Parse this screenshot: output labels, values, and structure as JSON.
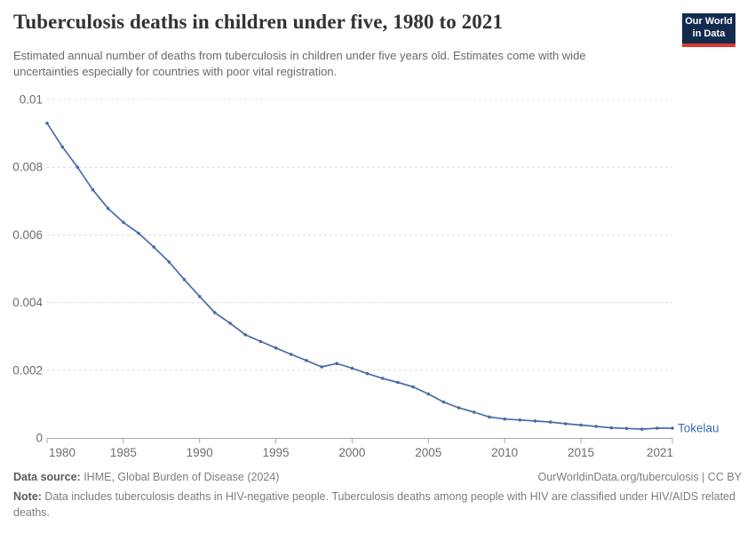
{
  "header": {
    "title": "Tuberculosis deaths in children under five, 1980 to 2021",
    "subtitle": "Estimated annual number of deaths from tuberculosis in children under five years old. Estimates come with wide uncertainties especially for countries with poor vital registration.",
    "logo": {
      "line1": "Our World",
      "line2": "in Data",
      "bg_color": "#132b4d",
      "stripe_color": "#d93b33"
    }
  },
  "chart_data": {
    "type": "line",
    "title": "Tuberculosis deaths in children under five, 1980 to 2021",
    "xlabel": "",
    "ylabel": "",
    "ylim": [
      0,
      0.01
    ],
    "yticks": [
      0,
      0.002,
      0.004,
      0.006,
      0.008,
      0.01
    ],
    "xticks": [
      1980,
      1985,
      1990,
      1995,
      2000,
      2005,
      2010,
      2015,
      2021
    ],
    "grid": true,
    "legend_position": "end-of-line",
    "colors": {
      "line": "#4a6ba8",
      "entity_label": "#3d6bb2",
      "gridline": "#dddddd",
      "axis": "#a8a8a8",
      "tick_label": "#6d6d6d"
    },
    "series": [
      {
        "name": "Tokelau",
        "x": [
          1980,
          1981,
          1982,
          1983,
          1984,
          1985,
          1986,
          1987,
          1988,
          1989,
          1990,
          1991,
          1992,
          1993,
          1994,
          1995,
          1996,
          1997,
          1998,
          1999,
          2000,
          2001,
          2002,
          2003,
          2004,
          2005,
          2006,
          2007,
          2008,
          2009,
          2010,
          2011,
          2012,
          2013,
          2014,
          2015,
          2016,
          2017,
          2018,
          2019,
          2020,
          2021
        ],
        "values": [
          0.0093,
          0.0086,
          0.008,
          0.00733,
          0.00678,
          0.00637,
          0.00605,
          0.00564,
          0.0052,
          0.00468,
          0.00418,
          0.0037,
          0.00339,
          0.00305,
          0.00285,
          0.00266,
          0.00247,
          0.00229,
          0.0021,
          0.0022,
          0.00206,
          0.0019,
          0.00176,
          0.00164,
          0.00151,
          0.0013,
          0.00106,
          0.00089,
          0.00076,
          0.00062,
          0.00056,
          0.00053,
          0.0005,
          0.00047,
          0.00042,
          0.00038,
          0.00034,
          0.0003,
          0.00028,
          0.00026,
          0.00029,
          0.00029
        ]
      }
    ]
  },
  "footer": {
    "data_source_label": "Data source:",
    "data_source_value": " IHME, Global Burden of Disease (2024)",
    "attribution": "OurWorldinData.org/tuberculosis | CC BY",
    "note_label": "Note:",
    "note_text": " Data includes tuberculosis deaths in HIV-negative people. Tuberculosis deaths among people with HIV are classified under HIV/AIDS related deaths."
  }
}
